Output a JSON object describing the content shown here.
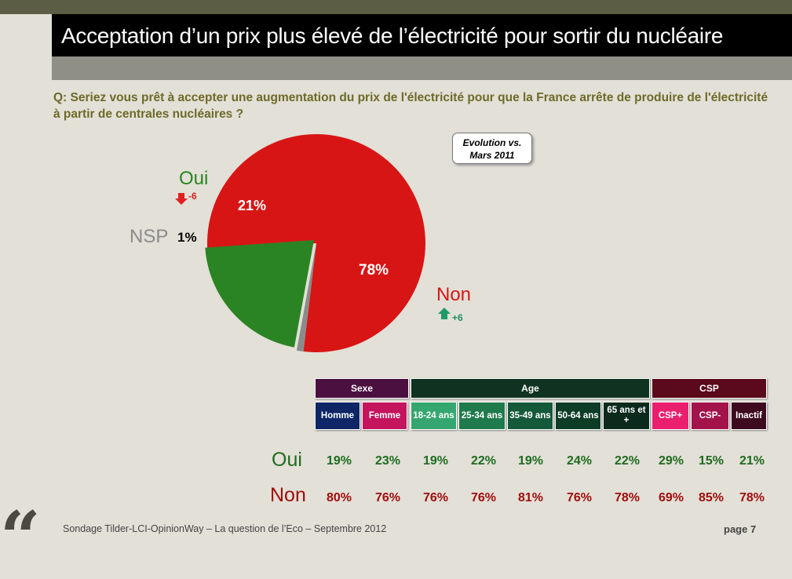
{
  "title": "Acceptation d’un prix plus élevé de l’électricité pour sortir du nucléaire",
  "question": "Q: Seriez vous prêt à accepter une augmentation du prix de l'électricité pour que la France arrête de produire de l'électricité à partir de centrales nucléaires ?",
  "evolution_box": {
    "line1": "Evolution vs.",
    "line2": "Mars 2011"
  },
  "chart_data": {
    "type": "pie",
    "title": "Acceptation d’un prix plus élevé de l’électricité pour sortir du nucléaire",
    "slices": [
      {
        "name": "Oui",
        "value": 21,
        "label": "21%",
        "evolution": "-6",
        "color": "#2a8424"
      },
      {
        "name": "Non",
        "value": 78,
        "label": "78%",
        "evolution": "+6",
        "color": "#d81515"
      },
      {
        "name": "NSP",
        "value": 1,
        "label": "1%",
        "evolution": "",
        "color": "#8b8b8b"
      }
    ]
  },
  "table": {
    "groups": [
      {
        "label": "Sexe",
        "color": "#4b1040"
      },
      {
        "label": "Age",
        "color": "#0f3320"
      },
      {
        "label": "CSP",
        "color": "#5a0a1a"
      }
    ],
    "columns": [
      {
        "label": "Homme",
        "color": "#0e2566"
      },
      {
        "label": "Femme",
        "color": "#c4145e"
      },
      {
        "label": "18-24 ans",
        "color": "#35a66f"
      },
      {
        "label": "25-34 ans",
        "color": "#1f7a4c"
      },
      {
        "label": "35-49 ans",
        "color": "#14593a"
      },
      {
        "label": "50-64 ans",
        "color": "#0d3d27"
      },
      {
        "label": "65 ans et +",
        "color": "#0b2a1c"
      },
      {
        "label": "CSP+",
        "color": "#ea1f6e"
      },
      {
        "label": "CSP-",
        "color": "#a3124a"
      },
      {
        "label": "Inactif",
        "color": "#3d0a1e"
      }
    ],
    "rows": [
      {
        "label": "Oui",
        "color": "#1e6b1e",
        "values": [
          "19%",
          "23%",
          "19%",
          "22%",
          "19%",
          "24%",
          "22%",
          "29%",
          "15%",
          "21%"
        ]
      },
      {
        "label": "Non",
        "color": "#a00d0d",
        "values": [
          "80%",
          "76%",
          "76%",
          "76%",
          "81%",
          "76%",
          "78%",
          "69%",
          "85%",
          "78%"
        ]
      }
    ]
  },
  "footer": "Sondage Tilder-LCI-OpinionWay – La question de l’Eco – Septembre 2012",
  "page": "page 7",
  "colors": {
    "title_bg": "#000000",
    "question": "#6e6a28",
    "bg": "#e2e0d7"
  }
}
